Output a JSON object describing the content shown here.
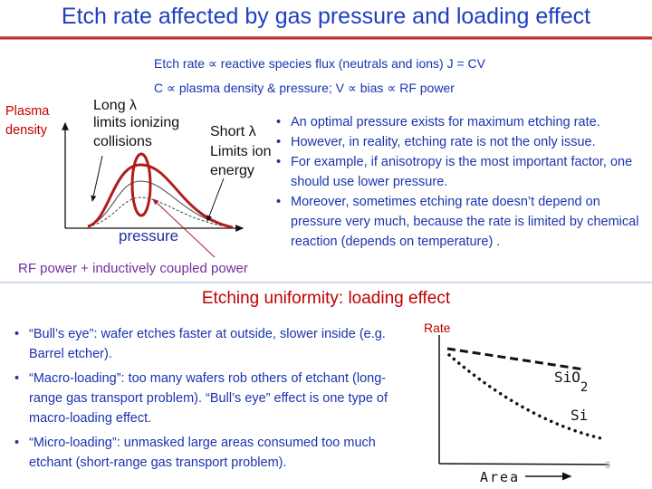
{
  "title": "Etch rate affected by gas pressure and loading effect",
  "equations": {
    "line1": "Etch rate ∝ reactive species flux (neutrals and ions) J = CV",
    "line2": "C ∝ plasma density & pressure; V ∝ bias ∝ RF power"
  },
  "pressure_diagram": {
    "ylabel_line1": "Plasma",
    "ylabel_line2": "density",
    "xlabel": "pressure",
    "long_label": [
      "Long λ",
      "limits ionizing",
      "collisions"
    ],
    "short_label": [
      "Short λ",
      "Limits ion",
      "energy"
    ],
    "rf_note": "RF power + inductively coupled power",
    "colors": {
      "highlight": "#b01c1c",
      "axis": "#111111",
      "note": "#7030a0"
    }
  },
  "right_bullets": [
    "An optimal pressure exists for maximum etching rate.",
    "However, in reality, etching rate is not the only issue.",
    "For example, if anisotropy is the most important factor, one should use lower pressure.",
    "Moreover, sometimes etching rate doesn’t depend on pressure very much, because the rate is limited by chemical reaction (depends on temperature) ."
  ],
  "subtitle": "Etching uniformity: loading effect",
  "left_bullets": [
    "“Bull’s eye”: wafer etches faster at outside, slower inside (e.g. Barrel etcher).",
    "“Macro-loading”: too many wafers rob others of etchant (long-range gas transport problem). “Bull’s eye” effect is one type of macro-loading effect.",
    "“Micro-loading”: unmasked large areas consumed too much etchant (short-range gas transport problem)."
  ],
  "loading_chart": {
    "ylabel": "Rate",
    "xlabel": "Area",
    "series": [
      "SiO2",
      "Si"
    ]
  },
  "page_number": "6",
  "colors": {
    "title": "#1f3fbf",
    "body": "#1a33b0",
    "accent": "#c00000"
  }
}
